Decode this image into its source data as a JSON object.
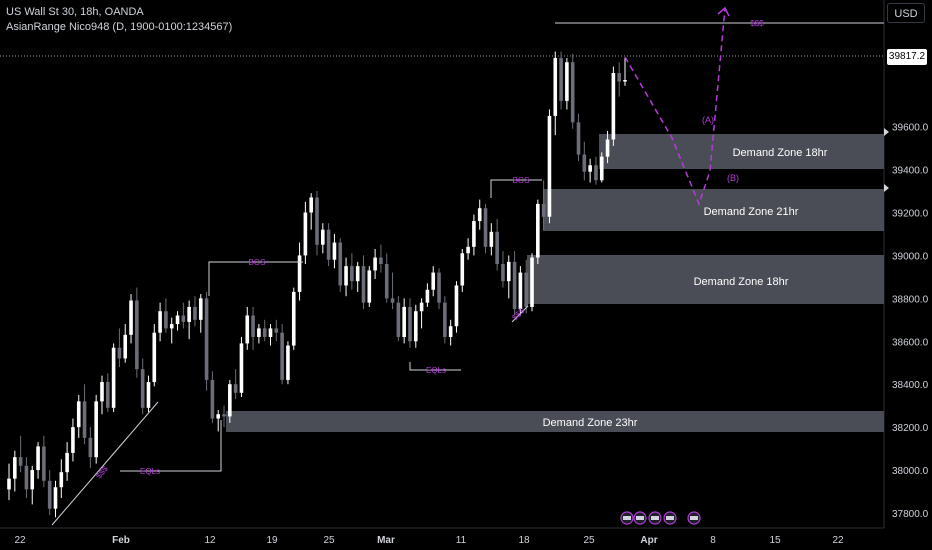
{
  "header": {
    "symbol_line": "US Wall St 30, 18h, OANDA",
    "indicator_line": "AsianRange Nico948 (D, 1900-0100:1234567)"
  },
  "currency_button": "USD",
  "last_price_label": "39817.2",
  "colors": {
    "background": "#000000",
    "candle_up": "#ffffff",
    "candle_down": "#6b6e78",
    "zone_fill": "#4a4d55",
    "annotation": "#b43cd8",
    "axis_text": "#d1d4dc"
  },
  "chart_data": {
    "type": "candlestick",
    "y_axis": {
      "ticks": [
        37800,
        38000,
        38200,
        38400,
        38600,
        38800,
        39000,
        39200,
        39400,
        39600
      ],
      "tick_labels": [
        "37800.0",
        "38000.0",
        "38200.0",
        "38400.0",
        "38600.0",
        "38800.0",
        "39000.0",
        "39200.0",
        "39400.0",
        "39600.0"
      ],
      "range": [
        37730,
        40190
      ]
    },
    "x_axis": {
      "tick_labels": [
        "22",
        "Feb",
        "12",
        "19",
        "25",
        "Mar",
        "11",
        "18",
        "25",
        "Apr",
        "8",
        "15",
        "22"
      ]
    },
    "candles": [
      {
        "o": 37910,
        "h": 38030,
        "l": 37860,
        "c": 37960
      },
      {
        "o": 37960,
        "h": 38090,
        "l": 37900,
        "c": 38060
      },
      {
        "o": 38060,
        "h": 38160,
        "l": 37990,
        "c": 38020
      },
      {
        "o": 38020,
        "h": 38060,
        "l": 37870,
        "c": 37910
      },
      {
        "o": 37910,
        "h": 38020,
        "l": 37840,
        "c": 38000
      },
      {
        "o": 38000,
        "h": 38130,
        "l": 37960,
        "c": 38110
      },
      {
        "o": 38110,
        "h": 38160,
        "l": 37920,
        "c": 37950
      },
      {
        "o": 37950,
        "h": 38000,
        "l": 37790,
        "c": 37820
      },
      {
        "o": 37820,
        "h": 37950,
        "l": 37780,
        "c": 37920
      },
      {
        "o": 37920,
        "h": 38050,
        "l": 37870,
        "c": 37990
      },
      {
        "o": 37990,
        "h": 38130,
        "l": 37950,
        "c": 38080
      },
      {
        "o": 38080,
        "h": 38240,
        "l": 38040,
        "c": 38200
      },
      {
        "o": 38200,
        "h": 38350,
        "l": 38150,
        "c": 38320
      },
      {
        "o": 38320,
        "h": 38400,
        "l": 38120,
        "c": 38150
      },
      {
        "o": 38150,
        "h": 38200,
        "l": 38010,
        "c": 38060
      },
      {
        "o": 38060,
        "h": 38350,
        "l": 38030,
        "c": 38320
      },
      {
        "o": 38320,
        "h": 38440,
        "l": 38260,
        "c": 38410
      },
      {
        "o": 38410,
        "h": 38450,
        "l": 38270,
        "c": 38290
      },
      {
        "o": 38290,
        "h": 38590,
        "l": 38270,
        "c": 38570
      },
      {
        "o": 38570,
        "h": 38660,
        "l": 38480,
        "c": 38520
      },
      {
        "o": 38520,
        "h": 38680,
        "l": 38500,
        "c": 38630
      },
      {
        "o": 38630,
        "h": 38820,
        "l": 38590,
        "c": 38790
      },
      {
        "o": 38790,
        "h": 38850,
        "l": 38430,
        "c": 38470
      },
      {
        "o": 38470,
        "h": 38520,
        "l": 38260,
        "c": 38290
      },
      {
        "o": 38290,
        "h": 38440,
        "l": 38270,
        "c": 38410
      },
      {
        "o": 38410,
        "h": 38680,
        "l": 38390,
        "c": 38640
      },
      {
        "o": 38640,
        "h": 38780,
        "l": 38600,
        "c": 38740
      },
      {
        "o": 38740,
        "h": 38800,
        "l": 38640,
        "c": 38660
      },
      {
        "o": 38660,
        "h": 38710,
        "l": 38590,
        "c": 38680
      },
      {
        "o": 38680,
        "h": 38740,
        "l": 38650,
        "c": 38720
      },
      {
        "o": 38720,
        "h": 38780,
        "l": 38660,
        "c": 38690
      },
      {
        "o": 38690,
        "h": 38790,
        "l": 38610,
        "c": 38760
      },
      {
        "o": 38760,
        "h": 38810,
        "l": 38670,
        "c": 38700
      },
      {
        "o": 38700,
        "h": 38820,
        "l": 38640,
        "c": 38800
      },
      {
        "o": 38800,
        "h": 38830,
        "l": 38370,
        "c": 38420
      },
      {
        "o": 38420,
        "h": 38460,
        "l": 38220,
        "c": 38240
      },
      {
        "o": 38240,
        "h": 38280,
        "l": 38180,
        "c": 38260
      },
      {
        "o": 38260,
        "h": 38300,
        "l": 38200,
        "c": 38250
      },
      {
        "o": 38250,
        "h": 38420,
        "l": 38220,
        "c": 38400
      },
      {
        "o": 38400,
        "h": 38470,
        "l": 38330,
        "c": 38360
      },
      {
        "o": 38360,
        "h": 38620,
        "l": 38340,
        "c": 38590
      },
      {
        "o": 38590,
        "h": 38760,
        "l": 38560,
        "c": 38720
      },
      {
        "o": 38720,
        "h": 38760,
        "l": 38560,
        "c": 38620
      },
      {
        "o": 38620,
        "h": 38680,
        "l": 38590,
        "c": 38660
      },
      {
        "o": 38660,
        "h": 38700,
        "l": 38600,
        "c": 38620
      },
      {
        "o": 38620,
        "h": 38680,
        "l": 38580,
        "c": 38660
      },
      {
        "o": 38660,
        "h": 38700,
        "l": 38600,
        "c": 38640
      },
      {
        "o": 38640,
        "h": 38680,
        "l": 38400,
        "c": 38420
      },
      {
        "o": 38420,
        "h": 38600,
        "l": 38400,
        "c": 38580
      },
      {
        "o": 38580,
        "h": 38850,
        "l": 38560,
        "c": 38830
      },
      {
        "o": 38830,
        "h": 39060,
        "l": 38790,
        "c": 39000
      },
      {
        "o": 39000,
        "h": 39250,
        "l": 38960,
        "c": 39200
      },
      {
        "o": 39200,
        "h": 39290,
        "l": 39120,
        "c": 39270
      },
      {
        "o": 39270,
        "h": 39300,
        "l": 39000,
        "c": 39050
      },
      {
        "o": 39050,
        "h": 39150,
        "l": 39010,
        "c": 39120
      },
      {
        "o": 39120,
        "h": 39150,
        "l": 38950,
        "c": 38980
      },
      {
        "o": 38980,
        "h": 39100,
        "l": 38940,
        "c": 39060
      },
      {
        "o": 39060,
        "h": 39080,
        "l": 38830,
        "c": 38860
      },
      {
        "o": 38860,
        "h": 38990,
        "l": 38810,
        "c": 38950
      },
      {
        "o": 38950,
        "h": 39010,
        "l": 38840,
        "c": 38880
      },
      {
        "o": 38880,
        "h": 38970,
        "l": 38830,
        "c": 38950
      },
      {
        "o": 38950,
        "h": 39000,
        "l": 38750,
        "c": 38780
      },
      {
        "o": 38780,
        "h": 38950,
        "l": 38760,
        "c": 38930
      },
      {
        "o": 38930,
        "h": 39030,
        "l": 38890,
        "c": 38990
      },
      {
        "o": 38990,
        "h": 39050,
        "l": 38920,
        "c": 38960
      },
      {
        "o": 38960,
        "h": 39010,
        "l": 38780,
        "c": 38800
      },
      {
        "o": 38800,
        "h": 38920,
        "l": 38750,
        "c": 38780
      },
      {
        "o": 38780,
        "h": 38810,
        "l": 38600,
        "c": 38620
      },
      {
        "o": 38620,
        "h": 38800,
        "l": 38590,
        "c": 38760
      },
      {
        "o": 38760,
        "h": 38800,
        "l": 38570,
        "c": 38600
      },
      {
        "o": 38600,
        "h": 38770,
        "l": 38570,
        "c": 38740
      },
      {
        "o": 38740,
        "h": 38800,
        "l": 38660,
        "c": 38780
      },
      {
        "o": 38780,
        "h": 38870,
        "l": 38760,
        "c": 38840
      },
      {
        "o": 38840,
        "h": 38950,
        "l": 38810,
        "c": 38920
      },
      {
        "o": 38920,
        "h": 38940,
        "l": 38750,
        "c": 38780
      },
      {
        "o": 38780,
        "h": 38810,
        "l": 38590,
        "c": 38620
      },
      {
        "o": 38620,
        "h": 38700,
        "l": 38580,
        "c": 38670
      },
      {
        "o": 38670,
        "h": 38880,
        "l": 38640,
        "c": 38860
      },
      {
        "o": 38860,
        "h": 39030,
        "l": 38830,
        "c": 39010
      },
      {
        "o": 39010,
        "h": 39080,
        "l": 38980,
        "c": 39040
      },
      {
        "o": 39040,
        "h": 39190,
        "l": 39000,
        "c": 39160
      },
      {
        "o": 39160,
        "h": 39260,
        "l": 39120,
        "c": 39220
      },
      {
        "o": 39220,
        "h": 39240,
        "l": 39010,
        "c": 39040
      },
      {
        "o": 39040,
        "h": 39150,
        "l": 39000,
        "c": 39110
      },
      {
        "o": 39110,
        "h": 39170,
        "l": 38930,
        "c": 38960
      },
      {
        "o": 38960,
        "h": 39020,
        "l": 38850,
        "c": 38880
      },
      {
        "o": 38880,
        "h": 39000,
        "l": 38800,
        "c": 38970
      },
      {
        "o": 38970,
        "h": 39020,
        "l": 38720,
        "c": 38750
      },
      {
        "o": 38750,
        "h": 38950,
        "l": 38720,
        "c": 38920
      },
      {
        "o": 38920,
        "h": 38980,
        "l": 38730,
        "c": 38760
      },
      {
        "o": 38760,
        "h": 39010,
        "l": 38740,
        "c": 38990
      },
      {
        "o": 38990,
        "h": 39260,
        "l": 38960,
        "c": 39240
      },
      {
        "o": 39240,
        "h": 39350,
        "l": 39120,
        "c": 39180
      },
      {
        "o": 39180,
        "h": 39680,
        "l": 39150,
        "c": 39650
      },
      {
        "o": 39650,
        "h": 39950,
        "l": 39560,
        "c": 39920
      },
      {
        "o": 39920,
        "h": 39950,
        "l": 39680,
        "c": 39720
      },
      {
        "o": 39720,
        "h": 39920,
        "l": 39680,
        "c": 39900
      },
      {
        "o": 39900,
        "h": 39940,
        "l": 39590,
        "c": 39620
      },
      {
        "o": 39620,
        "h": 39660,
        "l": 39440,
        "c": 39470
      },
      {
        "o": 39470,
        "h": 39530,
        "l": 39350,
        "c": 39390
      },
      {
        "o": 39390,
        "h": 39450,
        "l": 39340,
        "c": 39420
      },
      {
        "o": 39420,
        "h": 39460,
        "l": 39330,
        "c": 39350
      },
      {
        "o": 39350,
        "h": 39480,
        "l": 39340,
        "c": 39460
      },
      {
        "o": 39460,
        "h": 39580,
        "l": 39430,
        "c": 39540
      },
      {
        "o": 39540,
        "h": 39880,
        "l": 39510,
        "c": 39850
      },
      {
        "o": 39850,
        "h": 39900,
        "l": 39740,
        "c": 39810
      },
      {
        "o": 39810,
        "h": 39920,
        "l": 39790,
        "c": 39817.2
      }
    ],
    "zones": [
      {
        "label": "Demand Zone 18hr",
        "top": 39475,
        "bottom": 39325
      },
      {
        "label": "Demand Zone 21hr",
        "top": 39235,
        "bottom": 39050
      },
      {
        "label": "Demand Zone 18hr",
        "top": 38950,
        "bottom": 38740
      },
      {
        "label": "Demand Zone 23hr",
        "top": 38275,
        "bottom": 38180
      }
    ],
    "annotations": {
      "bos": [
        "BOS",
        "BOS"
      ],
      "eqls": [
        "EQLs",
        "EQLs"
      ],
      "sss": [
        "$$$",
        "$$$",
        "$$$"
      ],
      "waves": [
        "(A)",
        "(B)"
      ]
    }
  }
}
